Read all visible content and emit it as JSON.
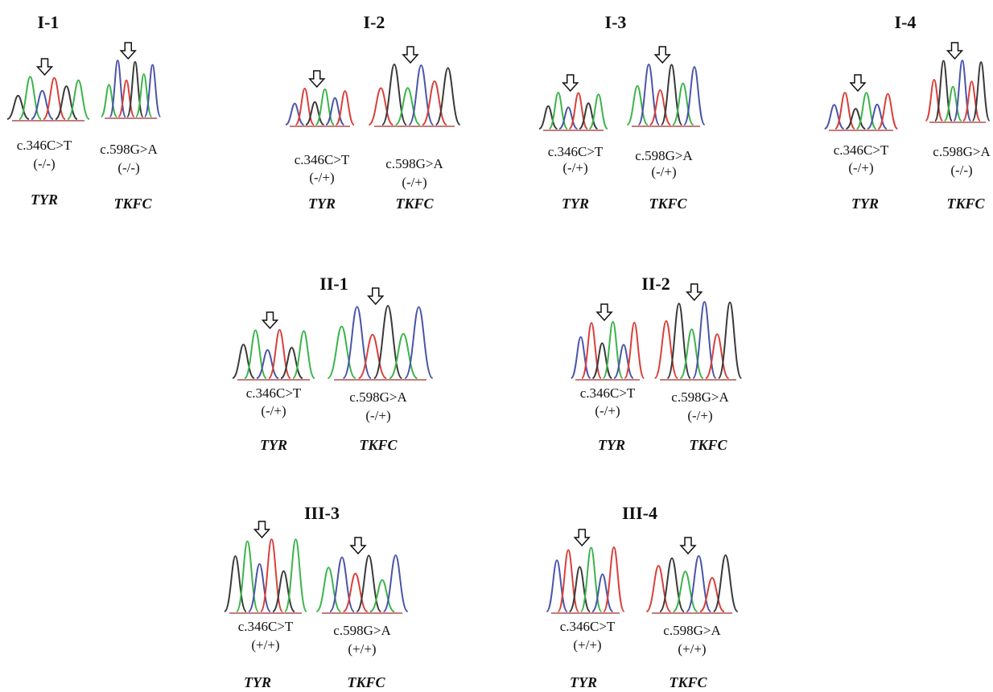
{
  "panels": [
    {
      "label": "I-1",
      "traces": [
        {
          "mutation": "c.346C>T",
          "genotype": "(-/-)",
          "gene": "TYR"
        },
        {
          "mutation": "c.598G>A",
          "genotype": "(-/-)",
          "gene": "TKFC"
        }
      ]
    },
    {
      "label": "I-2",
      "traces": [
        {
          "mutation": "c.346C>T",
          "genotype": "(-/+)",
          "gene": "TYR"
        },
        {
          "mutation": "c.598G>A",
          "genotype": "(-/+)",
          "gene": "TKFC"
        }
      ]
    },
    {
      "label": "I-3",
      "traces": [
        {
          "mutation": "c.346C>T",
          "genotype": "(-/+)",
          "gene": "TYR"
        },
        {
          "mutation": "c.598G>A",
          "genotype": "(-/+)",
          "gene": "TKFC"
        }
      ]
    },
    {
      "label": "I-4",
      "traces": [
        {
          "mutation": "c.346C>T",
          "genotype": "(-/+)",
          "gene": "TYR"
        },
        {
          "mutation": "c.598G>A",
          "genotype": "(-/-)",
          "gene": "TKFC"
        }
      ]
    },
    {
      "label": "II-1",
      "traces": [
        {
          "mutation": "c.346C>T",
          "genotype": "(-/+)",
          "gene": "TYR"
        },
        {
          "mutation": "c.598G>A",
          "genotype": "(-/+)",
          "gene": "TKFC"
        }
      ]
    },
    {
      "label": "II-2",
      "traces": [
        {
          "mutation": "c.346C>T",
          "genotype": "(-/+)",
          "gene": "TYR"
        },
        {
          "mutation": "c.598G>A",
          "genotype": "(-/+)",
          "gene": "TKFC"
        }
      ]
    },
    {
      "label": "III-3",
      "traces": [
        {
          "mutation": "c.346C>T",
          "genotype": "(+/+)",
          "gene": "TYR"
        },
        {
          "mutation": "c.598G>A",
          "genotype": "(+/+)",
          "gene": "TKFC"
        }
      ]
    },
    {
      "label": "III-4",
      "traces": [
        {
          "mutation": "c.346C>T",
          "genotype": "(+/+)",
          "gene": "TYR"
        },
        {
          "mutation": "c.598G>A",
          "genotype": "(+/+)",
          "gene": "TKFC"
        }
      ]
    }
  ]
}
